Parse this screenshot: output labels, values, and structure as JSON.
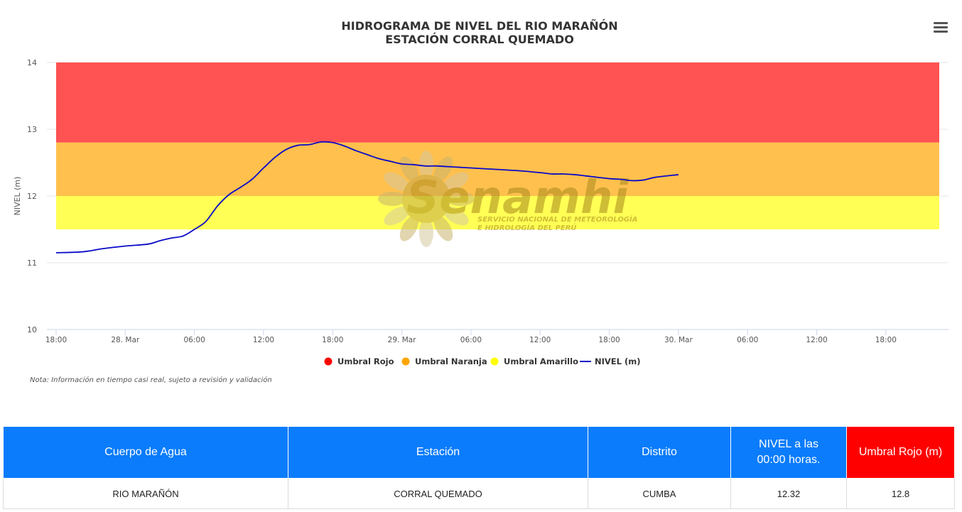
{
  "chart_data": {
    "type": "line",
    "title": "HIDROGRAMA DE NIVEL DEL RIO MARAÑÓN",
    "subtitle": "ESTACIÓN CORRAL QUEMADO",
    "ylabel": "NIVEL (m)",
    "xlabel": "",
    "ylim": [
      10,
      14
    ],
    "yticks": [
      10,
      11,
      12,
      13,
      14
    ],
    "x_hours_range": [
      18,
      70
    ],
    "xticks": [
      {
        "h": 18,
        "label": "18:00"
      },
      {
        "h": 24,
        "label": "28. Mar"
      },
      {
        "h": 30,
        "label": "06:00"
      },
      {
        "h": 36,
        "label": "12:00"
      },
      {
        "h": 42,
        "label": "18:00"
      },
      {
        "h": 48,
        "label": "29. Mar"
      },
      {
        "h": 54,
        "label": "06:00"
      },
      {
        "h": 60,
        "label": "12:00"
      },
      {
        "h": 66,
        "label": "18:00"
      },
      {
        "h": 72,
        "label": "30. Mar"
      },
      {
        "h": 78,
        "label": "06:00"
      },
      {
        "h": 84,
        "label": "12:00"
      },
      {
        "h": 90,
        "label": "18:00"
      }
    ],
    "bands": [
      {
        "name": "Umbral Rojo",
        "from": 12.8,
        "to": 14.0,
        "color": "#ff5252"
      },
      {
        "name": "Umbral Naranja",
        "from": 12.0,
        "to": 12.8,
        "color": "#ffc04d"
      },
      {
        "name": "Umbral Amarillo",
        "from": 11.5,
        "to": 12.0,
        "color": "#ffff55"
      }
    ],
    "series": [
      {
        "name": "NIVEL (m)",
        "color": "#0a0ac8",
        "x_hours": [
          18,
          20,
          21,
          22,
          24,
          26,
          27,
          28,
          29,
          30,
          31,
          32,
          33,
          34,
          35,
          36,
          37,
          38,
          39,
          40,
          41,
          42,
          43,
          44,
          45,
          46,
          47,
          48,
          49,
          50,
          51,
          52,
          53,
          54,
          56,
          58,
          60,
          61,
          62,
          63,
          64,
          66,
          67,
          68,
          69,
          70,
          72
        ],
        "y": [
          11.15,
          11.16,
          11.18,
          11.21,
          11.25,
          11.28,
          11.33,
          11.37,
          11.4,
          11.5,
          11.62,
          11.85,
          12.02,
          12.13,
          12.25,
          12.42,
          12.58,
          12.7,
          12.76,
          12.77,
          12.81,
          12.8,
          12.75,
          12.68,
          12.62,
          12.56,
          12.52,
          12.48,
          12.47,
          12.45,
          12.45,
          12.44,
          12.43,
          12.42,
          12.4,
          12.38,
          12.35,
          12.33,
          12.33,
          12.32,
          12.3,
          12.26,
          12.25,
          12.23,
          12.24,
          12.28,
          12.32
        ]
      }
    ],
    "legend": [
      {
        "label": "Umbral Rojo",
        "color": "#ff0000",
        "marker": "dot"
      },
      {
        "label": "Umbral Naranja",
        "color": "#ffa500",
        "marker": "dot"
      },
      {
        "label": "Umbral Amarillo",
        "color": "#ffff00",
        "marker": "dot"
      },
      {
        "label": "NIVEL (m)",
        "color": "#0a0ac8",
        "marker": "line"
      }
    ],
    "legend_position": "bottom-center",
    "grid": true
  },
  "watermark": {
    "brand": "Senamhi",
    "line1": "SERVICIO NACIONAL DE METEOROLOGÍA",
    "line2": "E HIDROLOGÍA DEL PERÚ"
  },
  "note": "Nota: Información en tiempo casi real, sujeto a revisión y validación",
  "table": {
    "headers": [
      "Cuerpo de Agua",
      "Estación",
      "Distrito",
      "NIVEL a las 00:00 horas.",
      "Umbral Rojo (m)"
    ],
    "row": [
      "RIO MARAÑÓN",
      "CORRAL QUEMADO",
      "CUMBA",
      "12.32",
      "12.8"
    ]
  }
}
